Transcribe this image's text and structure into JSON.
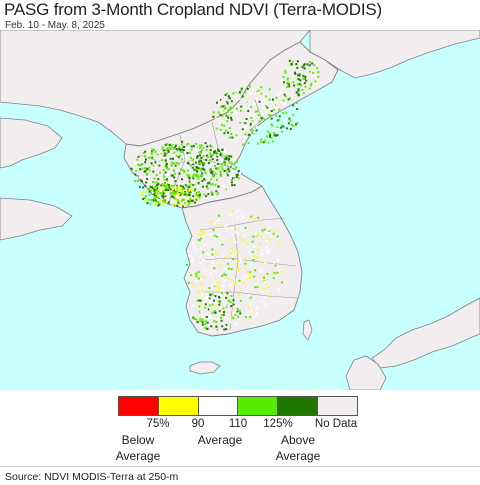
{
  "header": {
    "title": "PASG from 3-Month Cropland NDVI (Terra-MODIS)",
    "date_range": "Feb. 10 - May. 8, 2025"
  },
  "map": {
    "colors": {
      "sea": "#c8ffff",
      "land_other": "#f2edee",
      "border": "#808080",
      "admin": "#999999"
    }
  },
  "legend": {
    "colors": [
      "#ff0000",
      "#ffff00",
      "#ffffff",
      "#55ee00",
      "#227700",
      "#f2edee"
    ],
    "ticks": [
      "75%",
      "90",
      "110",
      "125%"
    ],
    "no_data": "No Data",
    "below_average_line1": "Below",
    "below_average_line2": "Average",
    "average": "Average",
    "above_average_line1": "Above",
    "above_average_line2": "Average"
  },
  "footer": {
    "source": "Source: NDVI MODIS-Terra at 250-m"
  }
}
